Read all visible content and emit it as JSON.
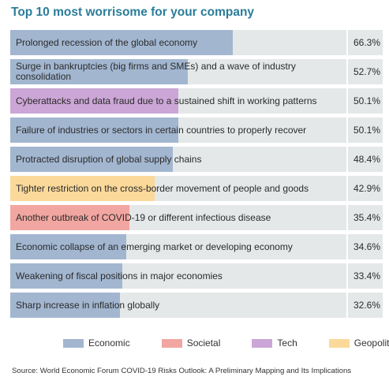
{
  "chart_data": {
    "type": "bar",
    "orientation": "horizontal",
    "title": "Top 10 most worrisome for your company",
    "xlim": [
      0,
      100
    ],
    "categories": [
      "Prolonged recession of the global economy",
      "Surge in bankruptcies (big firms and SMEs) and a wave of industry consolidation",
      "Cyberattacks and data fraud due to a sustained shift in working patterns",
      "Failure of industries or sectors in certain countries to properly recover",
      "Protracted disruption of global supply chains",
      "Tighter restriction on the cross-border movement of people and goods",
      "Another outbreak of COVID-19 or different infectious disease",
      "Economic collapse of an emerging market or developing economy",
      "Weakening of fiscal positions in major economies",
      "Sharp increase in inflation globally"
    ],
    "values": [
      66.3,
      52.7,
      50.1,
      50.1,
      48.4,
      42.9,
      35.4,
      34.6,
      33.4,
      32.6
    ],
    "value_labels": [
      "66.3%",
      "52.7%",
      "50.1%",
      "50.1%",
      "48.4%",
      "42.9%",
      "35.4%",
      "34.6%",
      "33.4%",
      "32.6%"
    ],
    "groups": [
      "Economic",
      "Economic",
      "Tech",
      "Economic",
      "Economic",
      "Geopolitical",
      "Societal",
      "Economic",
      "Economic",
      "Economic"
    ],
    "legend": [
      {
        "name": "Economic",
        "color": "#a2b6d0"
      },
      {
        "name": "Societal",
        "color": "#f2a6a1"
      },
      {
        "name": "Tech",
        "color": "#cba6d6"
      },
      {
        "name": "Geopolitical",
        "color": "#fbd99a"
      }
    ],
    "legend_placement": "bottom",
    "source": "Source: World Economic Forum COVID-19 Risks Outlook: A Preliminary Mapping and Its Implications"
  }
}
